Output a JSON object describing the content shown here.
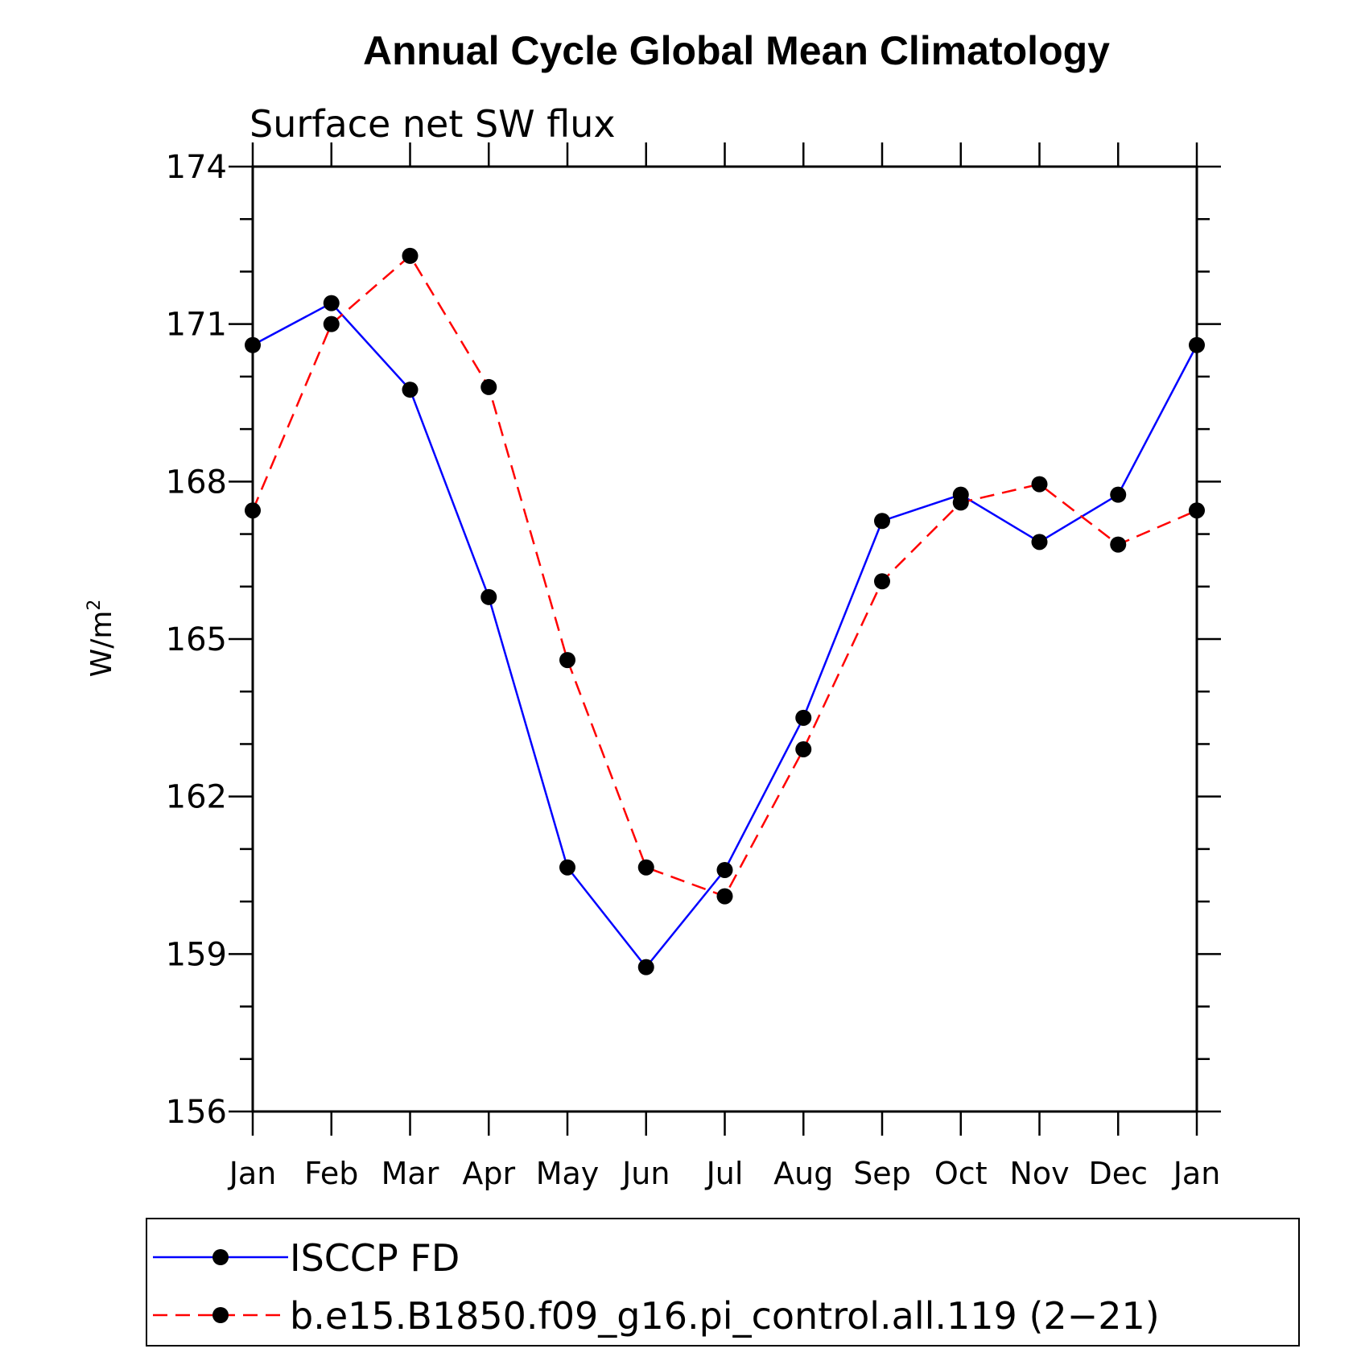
{
  "chart_data": {
    "type": "line",
    "title": "Annual Cycle Global Mean Climatology",
    "subtitle": "Surface net SW flux",
    "ylabel": "W/m",
    "ylabel_superscript": "2",
    "xlabel": "",
    "ylim": [
      156,
      174
    ],
    "yticks": [
      "156",
      "159",
      "162",
      "165",
      "168",
      "171",
      "174"
    ],
    "categories": [
      "Jan",
      "Feb",
      "Mar",
      "Apr",
      "May",
      "Jun",
      "Jul",
      "Aug",
      "Sep",
      "Oct",
      "Nov",
      "Dec",
      "Jan"
    ],
    "grid": false,
    "legend_position": "bottom",
    "series": [
      {
        "name": "ISCCP FD",
        "color": "#0000ff",
        "dash": "solid",
        "marker": "filled-circle",
        "values": [
          170.6,
          171.4,
          169.75,
          165.8,
          160.65,
          158.75,
          160.6,
          163.5,
          167.25,
          167.75,
          166.85,
          167.75,
          170.6
        ]
      },
      {
        "name": "b.e15.B1850.f09_g16.pi_control.all.119 (2−21)",
        "color": "#ff0000",
        "dash": "dashed",
        "marker": "filled-circle",
        "values": [
          167.45,
          171.0,
          172.3,
          169.8,
          164.6,
          160.65,
          160.1,
          162.9,
          166.1,
          167.6,
          167.95,
          166.8,
          167.45
        ]
      }
    ]
  }
}
